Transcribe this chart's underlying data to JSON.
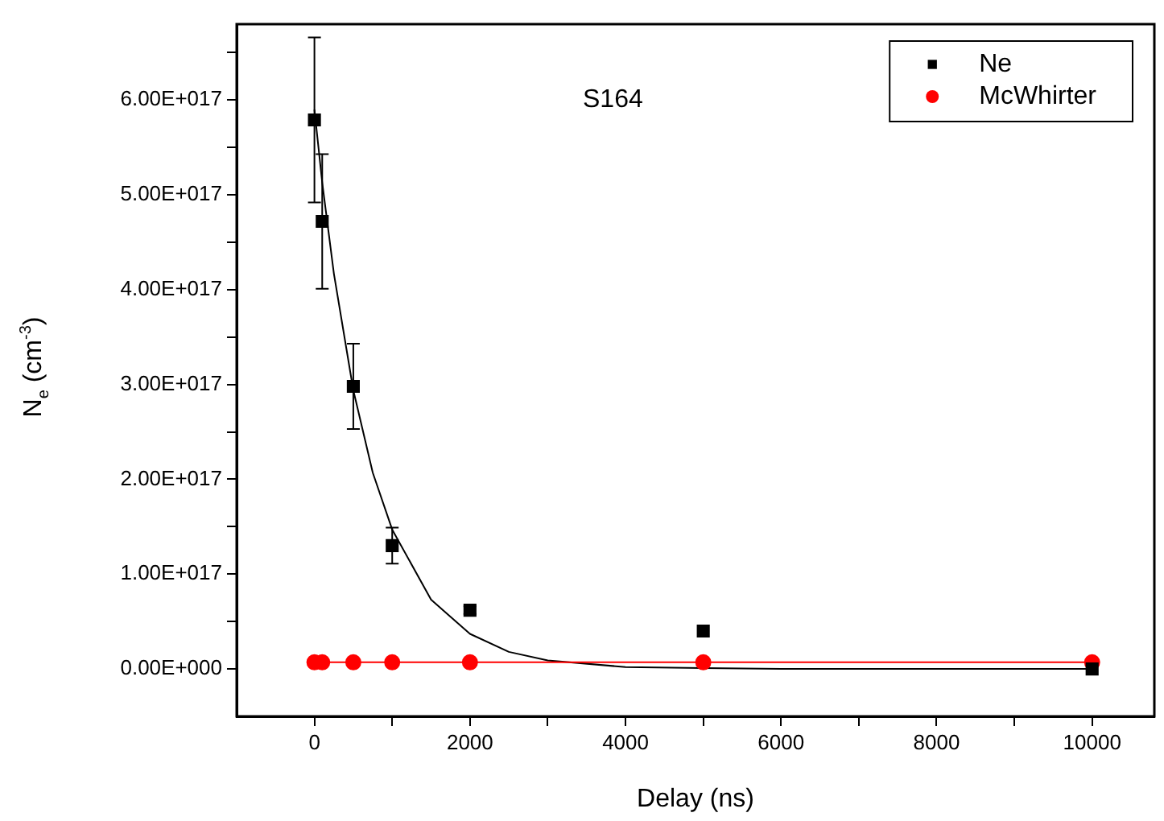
{
  "chart_data": {
    "type": "scatter",
    "xlabel": "Delay (ns)",
    "ylabel": "N$_{e}$ (cm$^{-3}$)",
    "annotations": [
      "S164"
    ],
    "xlim": [
      -1000,
      10800
    ],
    "xticks": [
      0,
      {
        "value": 1000,
        "label": null
      },
      2000,
      {
        "value": 3000,
        "label": null
      },
      4000,
      {
        "value": 5000,
        "label": null
      },
      6000,
      {
        "value": 7000,
        "label": null
      },
      8000,
      {
        "value": 9000,
        "label": null
      },
      10000
    ],
    "ylim": [
      -5e+16,
      6.8e+17
    ],
    "yticks": [
      {
        "value": 0,
        "label": "0.00E+000"
      },
      {
        "value": 5e+16,
        "label": null
      },
      {
        "value": 1e+17,
        "label": "1.00E+017"
      },
      {
        "value": 1.5e+17,
        "label": null
      },
      {
        "value": 2e+17,
        "label": "2.00E+017"
      },
      {
        "value": 2.5e+17,
        "label": null
      },
      {
        "value": 3e+17,
        "label": "3.00E+017"
      },
      {
        "value": 3.5e+17,
        "label": null
      },
      {
        "value": 4e+17,
        "label": "4.00E+017"
      },
      {
        "value": 4.5e+17,
        "label": null
      },
      {
        "value": 5e+17,
        "label": "5.00E+017"
      },
      {
        "value": 5.5e+17,
        "label": null
      },
      {
        "value": 6e+17,
        "label": "6.00E+017"
      },
      {
        "value": 6.5e+17,
        "label": null
      }
    ],
    "grid": false,
    "legend": "top right",
    "series": [
      {
        "name": "Ne",
        "type": "scatter",
        "color": "#000000",
        "marker": "square",
        "x": [
          0,
          100,
          500,
          1000,
          2000,
          5000,
          10000
        ],
        "values": [
          5.79e+17,
          4.72e+17,
          2.98e+17,
          1.3e+17,
          6.2e+16,
          4e+16,
          0
        ],
        "errors": [
          8.7e+16,
          7.1e+16,
          4.5e+16,
          1.9e+16,
          4000000000000000.0,
          null,
          null
        ]
      },
      {
        "name": "McWhirter",
        "type": "line",
        "color": "#ff0000",
        "marker": "circle",
        "x": [
          0,
          100,
          500,
          1000,
          2000,
          5000,
          10000
        ],
        "values": [
          7000000000000000.0,
          7000000000000000.0,
          7000000000000000.0,
          7000000000000000.0,
          7000000000000000.0,
          7000000000000000.0,
          7000000000000000.0
        ]
      },
      {
        "type": "line",
        "color": "#000000",
        "marker": "none",
        "x": [
          0,
          100,
          250,
          500,
          750,
          1000,
          1500,
          2000,
          2500,
          3000,
          4000,
          5000,
          6000,
          8000,
          10000
        ],
        "values": [
          5.9e+17,
          5.13e+17,
          4.17e+17,
          2.94e+17,
          2.07e+17,
          1.47e+17,
          7.3e+16,
          3.7e+16,
          1.8e+16,
          9000000000000000.0,
          2000000000000000.0,
          1000000000000000.0,
          0,
          0,
          0
        ]
      }
    ]
  }
}
